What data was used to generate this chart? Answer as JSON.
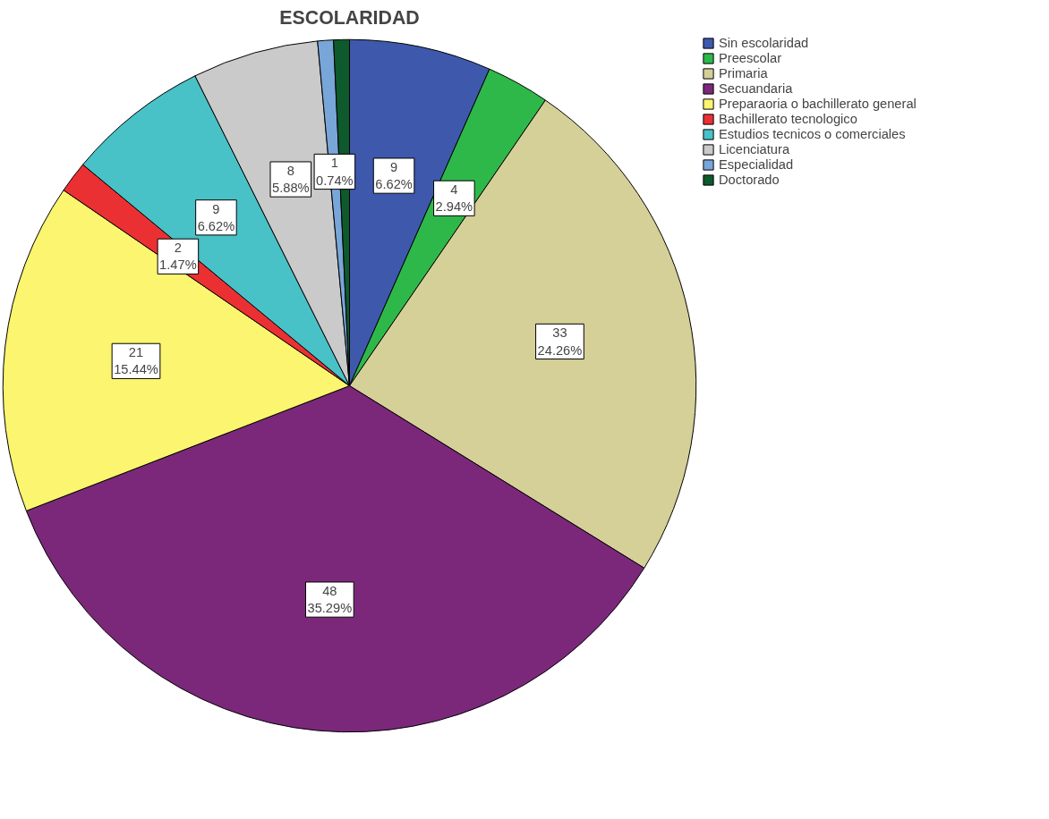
{
  "chart_data": {
    "type": "pie",
    "title": "ESCOLARIDAD",
    "categories": [
      "Sin escolaridad",
      "Preescolar",
      "Primaria",
      "Secuandaria",
      "Preparaoria o bachillerato general",
      "Bachillerato tecnologico",
      "Estudios tecnicos o comerciales",
      "Licenciatura",
      "Especialidad",
      "Doctorado"
    ],
    "values": [
      9,
      4,
      33,
      48,
      21,
      2,
      9,
      8,
      1,
      1
    ],
    "colors": [
      "#3e58ac",
      "#2fb84a",
      "#d5cf98",
      "#7b287b",
      "#fbf56f",
      "#eb3033",
      "#48c1c7",
      "#cacaca",
      "#79a6d8",
      "#0e5a2c"
    ],
    "value_labels": [
      "9\n6.62%",
      "4\n2.94%",
      "33\n24.26%",
      "48\n35.29%",
      "21\n15.44%",
      "2\n1.47%",
      "9\n6.62%",
      "8\n5.88%",
      "1\n0.74%",
      null
    ],
    "legend": "top right"
  }
}
